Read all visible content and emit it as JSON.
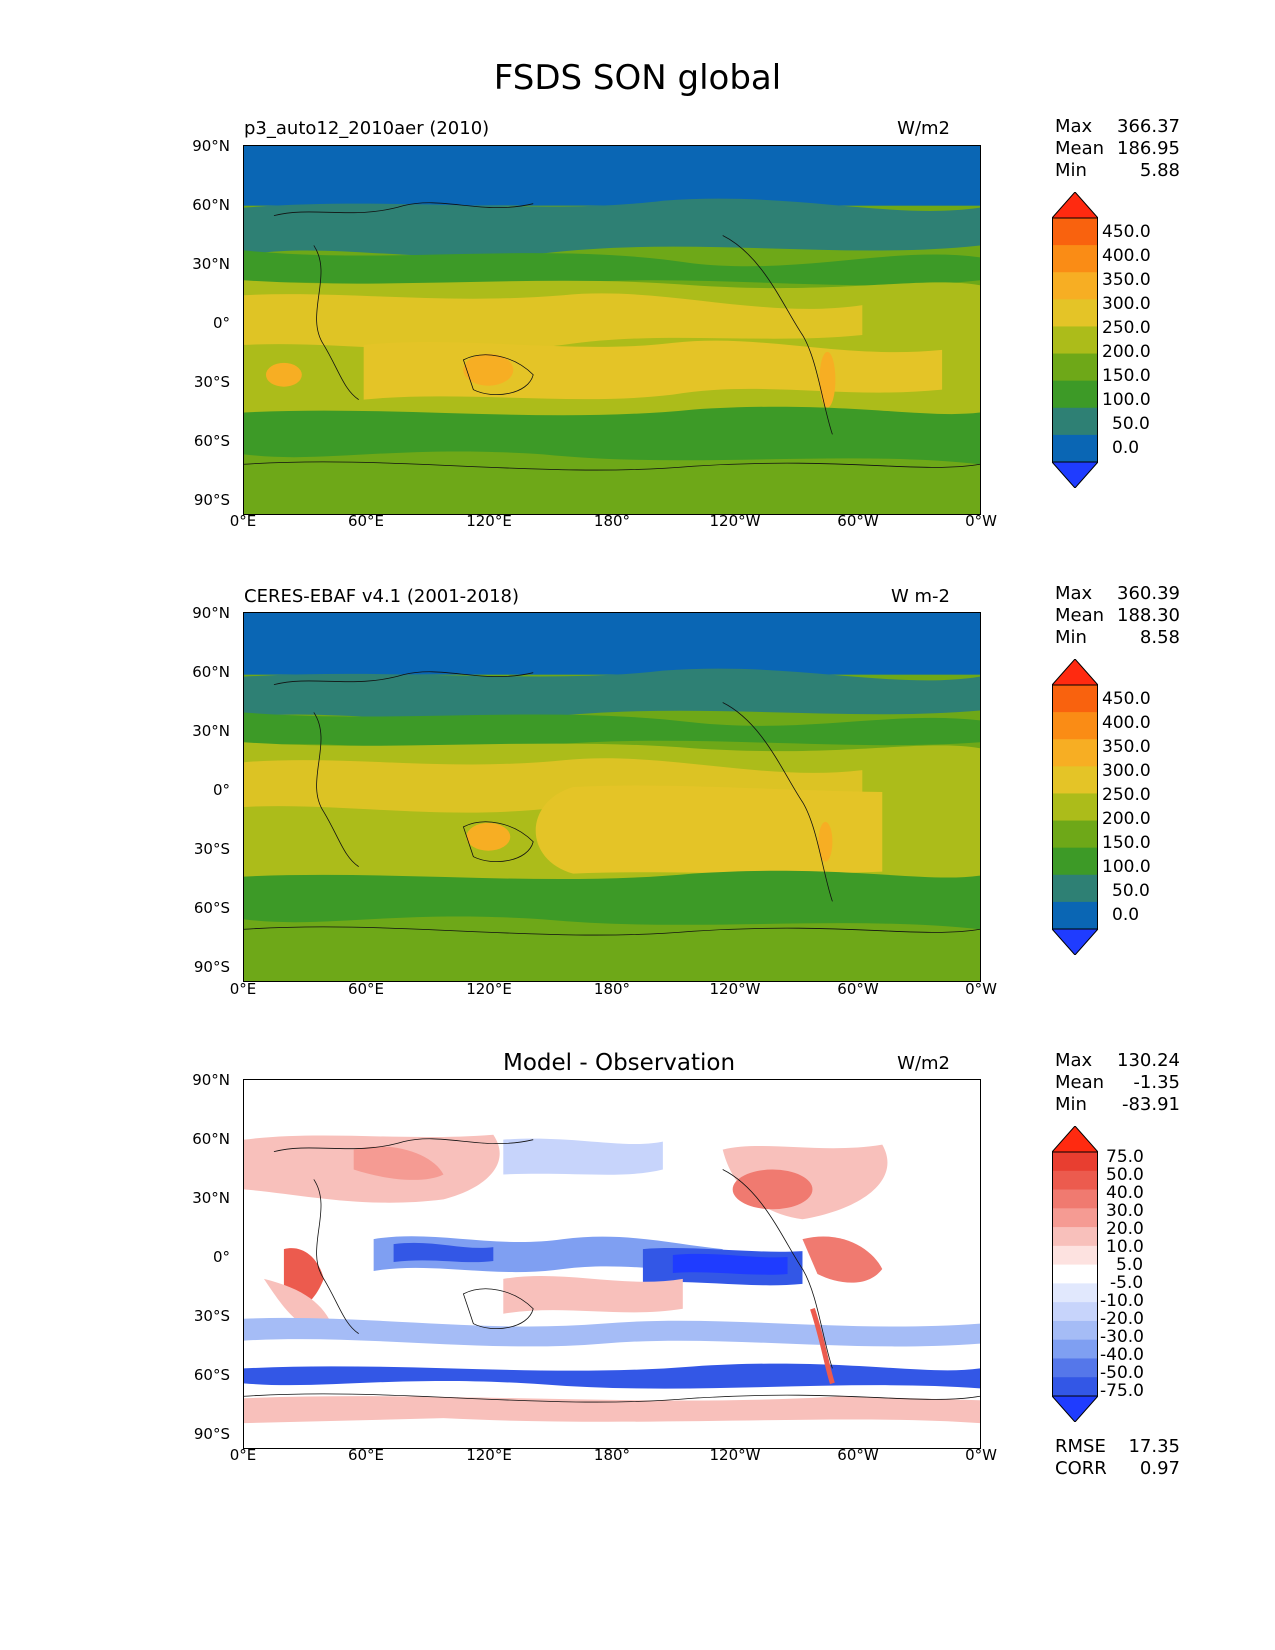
{
  "figure": {
    "title": "FSDS SON global"
  },
  "axes": {
    "lat_labels": [
      "90°N",
      "60°N",
      "30°N",
      "0°",
      "30°S",
      "60°S",
      "90°S"
    ],
    "lon_labels": [
      "0°E",
      "60°E",
      "120°E",
      "180°",
      "120°W",
      "60°W",
      "0°W"
    ]
  },
  "panels": [
    {
      "title": "p3_auto12_2010aer (2010)",
      "units": "W/m2",
      "stats": {
        "max_label": "Max",
        "max": "366.37",
        "mean_label": "Mean",
        "mean": "186.95",
        "min_label": "Min",
        "min": "5.88"
      },
      "colorbar_labels": [
        "450.0",
        "400.0",
        "350.0",
        "300.0",
        "250.0",
        "200.0",
        "150.0",
        "100.0",
        "50.0",
        "0.0"
      ]
    },
    {
      "title": "CERES-EBAF v4.1 (2001-2018)",
      "units": "W m-2",
      "stats": {
        "max_label": "Max",
        "max": "360.39",
        "mean_label": "Mean",
        "mean": "188.30",
        "min_label": "Min",
        "min": "8.58"
      },
      "colorbar_labels": [
        "450.0",
        "400.0",
        "350.0",
        "300.0",
        "250.0",
        "200.0",
        "150.0",
        "100.0",
        "50.0",
        "0.0"
      ]
    },
    {
      "title": "Model - Observation",
      "units": "W/m2",
      "stats": {
        "max_label": "Max",
        "max": "130.24",
        "mean_label": "Mean",
        "mean": "-1.35",
        "min_label": "Min",
        "min": "-83.91"
      },
      "colorbar_labels": [
        "75.0",
        "50.0",
        "40.0",
        "30.0",
        "20.0",
        "10.0",
        "5.0",
        "-5.0",
        "-10.0",
        "-20.0",
        "-30.0",
        "-40.0",
        "-50.0",
        "-75.0"
      ],
      "metrics": {
        "rmse_label": "RMSE",
        "rmse": "17.35",
        "corr_label": "CORR",
        "corr": "0.97"
      }
    }
  ],
  "colors": {
    "abs_scale": [
      "#1f3cff",
      "#0a66b4",
      "#2e8074",
      "#3d9a27",
      "#6ea818",
      "#acbc1a",
      "#e4c427",
      "#f7ae23",
      "#fa8c15",
      "#f9620e",
      "#ff2a10"
    ],
    "diff_scale": [
      "#1f3cff",
      "#3357e6",
      "#5577ea",
      "#7f9ff2",
      "#a5bcf6",
      "#c7d4fb",
      "#e1e8fd",
      "#ffffff",
      "#fde2e0",
      "#f8c0bb",
      "#f59b93",
      "#f07a70",
      "#ec5b4e",
      "#e83e30",
      "#ff2a10"
    ]
  }
}
